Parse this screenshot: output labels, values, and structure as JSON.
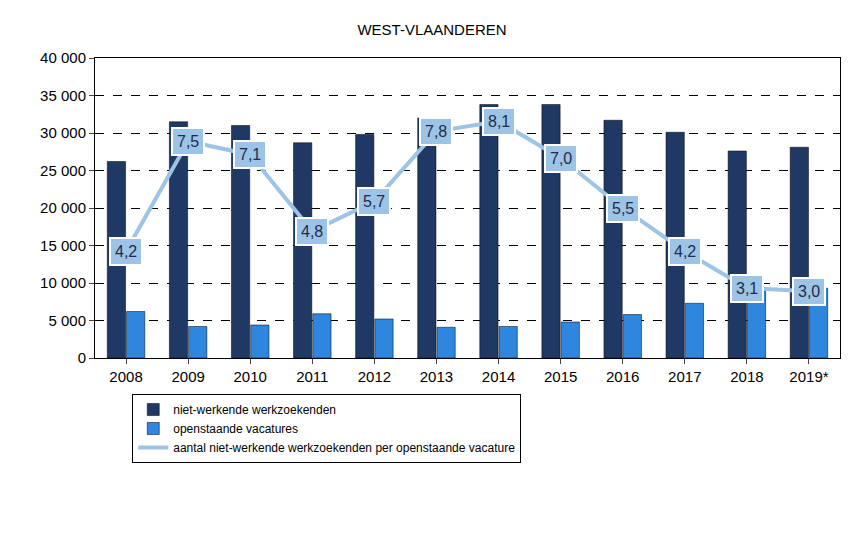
{
  "chart_data": {
    "type": "bar",
    "title": "WEST-VLAANDEREN",
    "categories": [
      "2008",
      "2009",
      "2010",
      "2011",
      "2012",
      "2013",
      "2014",
      "2015",
      "2016",
      "2017",
      "2018",
      "2019*"
    ],
    "series": [
      {
        "name": "niet-werkende werkzoekenden",
        "type": "bar",
        "color": "#1f3864",
        "values": [
          26200,
          31500,
          31000,
          28700,
          29800,
          32000,
          33800,
          33800,
          31700,
          30100,
          27600,
          28100
        ]
      },
      {
        "name": "openstaande vacatures",
        "type": "bar",
        "color": "#2e86de",
        "values": [
          6200,
          4200,
          4400,
          5900,
          5200,
          4100,
          4200,
          4800,
          5800,
          7300,
          8900,
          9300
        ]
      },
      {
        "name": "aantal niet-werkende werkzoekenden per openstaande vacature",
        "type": "line",
        "color": "#9dc3e6",
        "axis": "y2",
        "data_labels": true,
        "values": [
          4.2,
          7.5,
          7.1,
          4.8,
          5.7,
          7.8,
          8.1,
          7.0,
          5.5,
          4.2,
          3.1,
          3.0
        ],
        "value_labels": [
          "4,2",
          "7,5",
          "7,1",
          "4,8",
          "5,7",
          "7,8",
          "8,1",
          "7,0",
          "5,5",
          "4,2",
          "3,1",
          "3,0"
        ]
      }
    ],
    "ylim": [
      0,
      40000
    ],
    "yticks": [
      0,
      {
        "value": 5000,
        "label": "5 000"
      },
      {
        "value": 10000,
        "label": "10 000"
      },
      {
        "value": 15000,
        "label": "15 000"
      },
      {
        "value": 20000,
        "label": "20 000"
      },
      {
        "value": 25000,
        "label": "25 000"
      },
      {
        "value": 30000,
        "label": "30 000"
      },
      {
        "value": 35000,
        "label": "35 000"
      },
      {
        "value": 40000,
        "label": "40 000"
      }
    ],
    "y2lim": [
      1,
      10
    ],
    "y2ticks": [],
    "grid": true,
    "legend": "bottom"
  }
}
